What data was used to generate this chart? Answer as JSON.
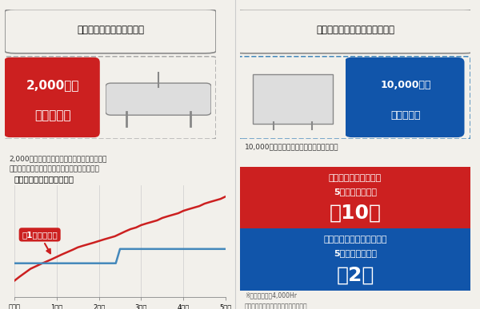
{
  "background_color": "#f2f0eb",
  "left_panel": {
    "top_box_text": "空気駆動型増圧機器の場合",
    "red_badge_line1": "2,000時間",
    "red_badge_line2": "ごとに整備",
    "desc_text": "2,000時間ごとに各種パッキン、ガスケット、\nバルブ等の交換もしくは本体交換が必要です。",
    "chart_title": "購入費と整備費の累計比較",
    "annotation_text": "約1年で逆転！",
    "xlabel_ticks": [
      "購入時",
      "1年目",
      "2年目",
      "3年目",
      "4年目",
      "5年目"
    ]
  },
  "right_panel": {
    "top_box_text": "ブースターコンプレッサの場合",
    "blue_badge_line1": "10,000時間",
    "blue_badge_line2": "ごとに整備",
    "desc_text": "10,000時間ごとに中間整備等を行います。",
    "red_box1_line1": "空気駆動型増圧機器の",
    "red_box1_line2": "5年間の整備回数",
    "red_box1_num": "約10回",
    "blue_box2_line1": "ブースターコンプレッサの",
    "blue_box2_line2": "5年間の整備回数",
    "blue_box2_num": "約2回",
    "footnote1": "※年間稼働時間4,000Hr",
    "footnote2": "各種費用は市場推定価格を用いて算出"
  },
  "red_color": "#cc2020",
  "blue_color": "#4488bb",
  "dark_red": "#bb1818",
  "navy_blue": "#1155aa",
  "grid_color": "#cccccc",
  "red_x": [
    0,
    0.12,
    0.25,
    0.38,
    0.5,
    0.62,
    0.75,
    0.88,
    1.0,
    1.12,
    1.25,
    1.38,
    1.5,
    1.62,
    1.75,
    1.88,
    2.0,
    2.12,
    2.25,
    2.38,
    2.5,
    2.62,
    2.75,
    2.88,
    3.0,
    3.12,
    3.25,
    3.38,
    3.5,
    3.62,
    3.75,
    3.88,
    4.0,
    4.12,
    4.25,
    4.38,
    4.5,
    4.62,
    4.75,
    4.88,
    5.0
  ],
  "red_y": [
    0.2,
    0.25,
    0.3,
    0.35,
    0.38,
    0.41,
    0.44,
    0.47,
    0.5,
    0.53,
    0.56,
    0.59,
    0.62,
    0.64,
    0.66,
    0.68,
    0.7,
    0.72,
    0.74,
    0.76,
    0.79,
    0.82,
    0.85,
    0.87,
    0.9,
    0.92,
    0.94,
    0.96,
    0.99,
    1.01,
    1.03,
    1.05,
    1.08,
    1.1,
    1.12,
    1.14,
    1.17,
    1.19,
    1.21,
    1.23,
    1.26
  ],
  "blue_x": [
    0,
    0.5,
    1.0,
    1.5,
    2.0,
    2.1,
    2.2,
    2.3,
    2.4,
    2.5,
    3.0,
    3.5,
    4.0,
    4.5,
    5.0
  ],
  "blue_y": [
    0.42,
    0.42,
    0.42,
    0.42,
    0.42,
    0.42,
    0.42,
    0.42,
    0.42,
    0.6,
    0.6,
    0.6,
    0.6,
    0.6,
    0.6
  ],
  "xlim": [
    0,
    5.0
  ],
  "ylim": [
    0,
    1.4
  ]
}
